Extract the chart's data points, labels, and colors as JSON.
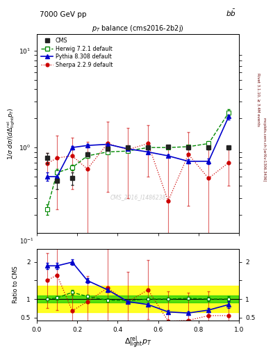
{
  "title_top_left": "7000 GeV pp",
  "title_top_right": "b$\\bar{b}$",
  "title_main": "p_T  balance (cms2016-2b2j)",
  "ylabel_main": "1/σ dσ/(dΔ_light^rel p_T)",
  "ylabel_ratio": "Ratio to CMS",
  "xlabel": "Δ_light^rel p_T",
  "watermark": "CMS_2016_I1486238",
  "right_label1": "Rivet 3.1.10, ≥ 3.4M events",
  "right_label2": "mcplots.cern.ch [arXiv:1306.3436]",
  "cms_x": [
    0.05,
    0.1,
    0.175,
    0.25,
    0.35,
    0.45,
    0.55,
    0.65,
    0.75,
    0.85,
    0.95
  ],
  "cms_y": [
    0.78,
    0.45,
    0.48,
    0.85,
    0.97,
    1.0,
    1.0,
    1.02,
    1.0,
    1.0,
    1.0
  ],
  "cms_yerr": [
    0.1,
    0.08,
    0.07,
    0.05,
    0.05,
    0.04,
    0.04,
    0.04,
    0.04,
    0.04,
    0.04
  ],
  "herwig_x": [
    0.05,
    0.1,
    0.175,
    0.25,
    0.35,
    0.45,
    0.55,
    0.65,
    0.75,
    0.85,
    0.95
  ],
  "herwig_y": [
    0.23,
    0.55,
    0.62,
    0.82,
    0.9,
    0.92,
    1.0,
    1.0,
    1.02,
    1.1,
    2.3
  ],
  "herwig_yerr": [
    0.03,
    0.05,
    0.04,
    0.04,
    0.04,
    0.03,
    0.03,
    0.03,
    0.04,
    0.06,
    0.18
  ],
  "pythia_x": [
    0.05,
    0.1,
    0.175,
    0.25,
    0.35,
    0.45,
    0.55,
    0.65,
    0.75,
    0.85,
    0.95
  ],
  "pythia_y": [
    0.5,
    0.5,
    1.0,
    1.05,
    1.08,
    0.97,
    0.9,
    0.82,
    0.72,
    0.72,
    2.1
  ],
  "pythia_yerr": [
    0.05,
    0.05,
    0.04,
    0.04,
    0.04,
    0.03,
    0.03,
    0.03,
    0.04,
    0.05,
    0.14
  ],
  "sherpa_x": [
    0.05,
    0.1,
    0.175,
    0.25,
    0.35,
    0.45,
    0.55,
    0.65,
    0.75,
    0.85,
    0.95
  ],
  "sherpa_y": [
    0.68,
    0.78,
    0.82,
    0.6,
    1.1,
    0.95,
    1.1,
    0.28,
    0.85,
    0.48,
    0.7
  ],
  "sherpa_yerr": [
    0.2,
    0.55,
    0.45,
    0.55,
    0.75,
    0.65,
    0.6,
    0.7,
    0.6,
    0.55,
    0.3
  ],
  "ratio_herwig_x": [
    0.05,
    0.1,
    0.175,
    0.25,
    0.35,
    0.45,
    0.55,
    0.65,
    0.75,
    0.85,
    0.95
  ],
  "ratio_herwig_y": [
    1.0,
    1.03,
    1.18,
    1.07,
    0.97,
    0.95,
    1.0,
    1.0,
    1.02,
    1.0,
    1.0
  ],
  "ratio_herwig_yerr": [
    0.03,
    0.05,
    0.06,
    0.05,
    0.04,
    0.03,
    0.03,
    0.03,
    0.04,
    0.05,
    0.08
  ],
  "ratio_pythia_x": [
    0.05,
    0.1,
    0.175,
    0.25,
    0.35,
    0.45,
    0.55,
    0.65,
    0.75,
    0.85,
    0.95
  ],
  "ratio_pythia_y": [
    1.9,
    1.9,
    2.0,
    1.5,
    1.25,
    0.93,
    0.85,
    0.65,
    0.62,
    0.7,
    0.85
  ],
  "ratio_pythia_yerr": [
    0.08,
    0.08,
    0.08,
    0.07,
    0.06,
    0.04,
    0.04,
    0.04,
    0.05,
    0.06,
    0.09
  ],
  "ratio_sherpa_x": [
    0.05,
    0.1,
    0.175,
    0.25,
    0.35,
    0.45,
    0.55,
    0.65,
    0.75,
    0.85,
    0.95
  ],
  "ratio_sherpa_y": [
    1.5,
    1.65,
    0.68,
    0.93,
    1.3,
    0.92,
    1.25,
    0.4,
    0.42,
    0.55,
    0.55
  ],
  "ratio_sherpa_yerr": [
    0.75,
    0.95,
    0.45,
    0.7,
    1.05,
    0.82,
    0.8,
    0.8,
    0.75,
    0.65,
    0.4
  ],
  "cms_color": "#222222",
  "herwig_color": "#008800",
  "pythia_color": "#0000cc",
  "sherpa_color": "#cc0000",
  "band_green_lo": 0.9,
  "band_green_hi": 1.1,
  "band_yellow_lo": 0.65,
  "band_yellow_hi": 1.35,
  "xlim": [
    0.0,
    1.0
  ],
  "ylim_main_lo": 0.13,
  "ylim_main_hi": 15.0,
  "ylim_ratio_lo": 0.42,
  "ylim_ratio_hi": 2.35
}
